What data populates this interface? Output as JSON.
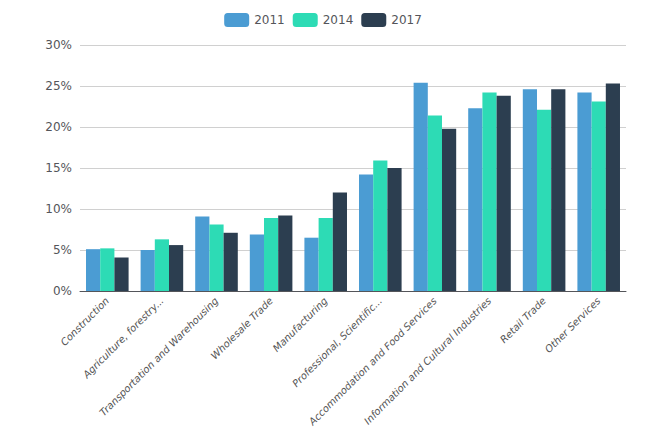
{
  "chart_data": {
    "type": "bar",
    "categories": [
      "Construction",
      "Agriculture, forestry...",
      "Transportation and Warehousing",
      "Wholesale Trade",
      "Manufacturing",
      "Professional, Scientific...",
      "Accommodation and Food Services",
      "Information and Cultural Industries",
      "Retail Trade",
      "Other Services"
    ],
    "series": [
      {
        "name": "2011",
        "color": "#4B9CD3",
        "values": [
          5.1,
          5.0,
          9.1,
          6.9,
          6.5,
          14.2,
          25.4,
          22.3,
          24.6,
          24.2
        ]
      },
      {
        "name": "2014",
        "color": "#2DDBB5",
        "values": [
          5.2,
          6.3,
          8.1,
          8.9,
          8.9,
          15.9,
          21.4,
          24.2,
          22.1,
          23.1
        ]
      },
      {
        "name": "2017",
        "color": "#2C3E50",
        "values": [
          4.1,
          5.6,
          7.1,
          9.2,
          12.0,
          15.0,
          19.8,
          23.8,
          24.6,
          25.3
        ]
      }
    ],
    "ylim": [
      0,
      30
    ],
    "yticks": [
      {
        "value": 0,
        "label": "0%"
      },
      {
        "value": 5,
        "label": "5%"
      },
      {
        "value": 10,
        "label": "10%"
      },
      {
        "value": 15,
        "label": "15%"
      },
      {
        "value": 20,
        "label": "20%"
      },
      {
        "value": 25,
        "label": "25%"
      },
      {
        "value": 30,
        "label": "30%"
      }
    ],
    "grid": true,
    "legend": "top"
  }
}
